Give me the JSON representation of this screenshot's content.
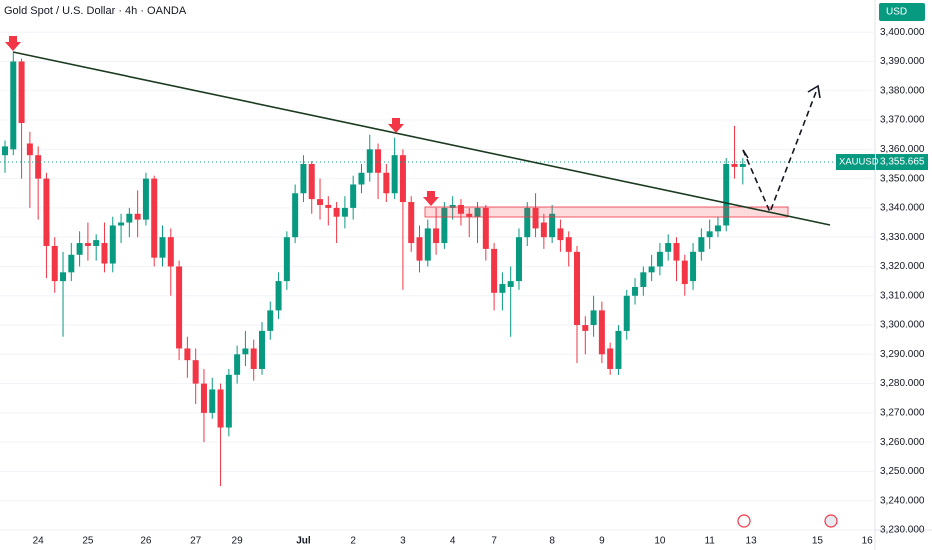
{
  "chart_data": {
    "type": "candlestick",
    "title": "Gold Spot / U.S. Dollar · 4h · OANDA",
    "currency": "USD",
    "up_color": "#089981",
    "down_color": "#f23645",
    "categories": [
      null,
      null,
      null,
      null,
      "24",
      null,
      null,
      null,
      null,
      null,
      "25",
      null,
      null,
      null,
      null,
      null,
      null,
      "26",
      null,
      null,
      null,
      null,
      null,
      "27",
      null,
      null,
      null,
      null,
      "29",
      null,
      null,
      null,
      null,
      null,
      null,
      null,
      "Jul",
      null,
      null,
      null,
      null,
      null,
      "2",
      null,
      null,
      null,
      null,
      null,
      "3",
      null,
      null,
      null,
      null,
      null,
      "4",
      null,
      null,
      null,
      null,
      "7",
      null,
      null,
      null,
      null,
      null,
      null,
      "8",
      null,
      null,
      null,
      null,
      null,
      "9",
      null,
      null,
      null,
      null,
      null,
      null,
      "10",
      null,
      null,
      null,
      null,
      null,
      "11",
      null,
      null,
      null,
      null,
      "13",
      null,
      null,
      null,
      null,
      null,
      null,
      null,
      "15",
      null,
      null,
      null,
      null,
      null,
      "16"
    ],
    "open": [
      3358,
      3360,
      3390,
      3362,
      3358,
      3350,
      3327,
      3315,
      3318,
      3324,
      3328,
      3327,
      3328,
      3321,
      3334,
      3335,
      3338,
      3336,
      3350,
      3323,
      3330,
      3320,
      3292,
      3288,
      3280,
      3270,
      3278,
      3265,
      3283,
      3290,
      3292,
      3285,
      3298,
      3305,
      3315,
      3330,
      3345,
      3355,
      3343,
      3341,
      3340,
      3337,
      3340,
      3348,
      3352,
      3360,
      3352,
      3345,
      3358,
      3342,
      3330,
      3322,
      3333,
      3328,
      3340,
      3341,
      3338,
      3337,
      3340,
      3326,
      3311,
      3313,
      3315,
      3330,
      3340,
      3335,
      3330,
      3333,
      3330,
      3325,
      3300,
      3300,
      3305,
      3292,
      3285,
      3298,
      3310,
      3313,
      3318,
      3320,
      3325,
      3328,
      3322,
      3315,
      3325,
      3330,
      3332,
      3334,
      3355,
      3354,
      null,
      null,
      null,
      null,
      null,
      null,
      null,
      null,
      null,
      null,
      null,
      null,
      null,
      null,
      null
    ],
    "close": [
      3361,
      3390,
      3369,
      3358,
      3350,
      3327,
      3315,
      3318,
      3324,
      3328,
      3327,
      3329,
      3321,
      3334,
      3335,
      3338,
      3336,
      3350,
      3323,
      3330,
      3320,
      3292,
      3288,
      3280,
      3270,
      3278,
      3265,
      3283,
      3290,
      3292,
      3285,
      3298,
      3305,
      3315,
      3330,
      3345,
      3355,
      3343,
      3341,
      3340,
      3337,
      3340,
      3348,
      3352,
      3360,
      3352,
      3345,
      3358,
      3342,
      3328,
      3322,
      3333,
      3328,
      3340,
      3341,
      3338,
      3337,
      3340,
      3326,
      3311,
      3314,
      3315,
      3330,
      3340,
      3333,
      3330,
      3338,
      3329,
      3325,
      3300,
      3298,
      3305,
      3290,
      3285,
      3298,
      3310,
      3313,
      3318,
      3320,
      3325,
      3328,
      3322,
      3314,
      3325,
      3330,
      3332,
      3334,
      3355,
      3354,
      3355,
      null,
      null,
      null,
      null,
      null,
      null,
      null,
      null,
      null,
      null,
      null,
      null,
      null,
      null,
      null
    ],
    "high": [
      3363,
      3393,
      3391,
      3366,
      3361,
      3352,
      3330,
      3325,
      3328,
      3332,
      3335,
      3331,
      3335,
      3337,
      3338,
      3340,
      3346,
      3352,
      3351,
      3334,
      3333,
      3322,
      3296,
      3292,
      3285,
      3282,
      3280,
      3285,
      3293,
      3298,
      3295,
      3301,
      3308,
      3318,
      3332,
      3348,
      3358,
      3356,
      3350,
      3344,
      3342,
      3344,
      3351,
      3355,
      3365,
      3362,
      3355,
      3364,
      3360,
      3344,
      3334,
      3336,
      3340,
      3342,
      3344,
      3343,
      3340,
      3342,
      3341,
      3328,
      3318,
      3320,
      3333,
      3342,
      3345,
      3338,
      3341,
      3336,
      3332,
      3327,
      3303,
      3310,
      3308,
      3294,
      3300,
      3312,
      3316,
      3320,
      3324,
      3328,
      3331,
      3330,
      3324,
      3328,
      3333,
      3336,
      3337,
      3357,
      3368,
      3357,
      null,
      null,
      null,
      null,
      null,
      null,
      null,
      null,
      null,
      null,
      null,
      null,
      null,
      null,
      null
    ],
    "low": [
      3352,
      3358,
      3350,
      3340,
      3336,
      3316,
      3311,
      3296,
      3315,
      3320,
      3322,
      3322,
      3318,
      3318,
      3328,
      3330,
      3330,
      3334,
      3320,
      3320,
      3310,
      3288,
      3282,
      3273,
      3260,
      3268,
      3245,
      3262,
      3280,
      3286,
      3281,
      3283,
      3295,
      3302,
      3312,
      3328,
      3342,
      3338,
      3336,
      3334,
      3328,
      3333,
      3336,
      3345,
      3349,
      3343,
      3342,
      3343,
      3312,
      3325,
      3318,
      3320,
      3324,
      3326,
      3336,
      3334,
      3330,
      3328,
      3322,
      3305,
      3305,
      3296,
      3312,
      3327,
      3330,
      3326,
      3328,
      3325,
      3320,
      3287,
      3290,
      3296,
      3287,
      3283,
      3283,
      3295,
      3307,
      3310,
      3315,
      3317,
      3322,
      3315,
      3310,
      3312,
      3322,
      3326,
      3330,
      3332,
      3350,
      3348,
      null,
      null,
      null,
      null,
      null,
      null,
      null,
      null,
      null,
      null,
      null,
      null,
      null,
      null,
      null
    ],
    "ylim": [
      3230,
      3411
    ],
    "yticks": [
      {
        "value": 3230,
        "label": "3,230.000"
      },
      {
        "value": 3240,
        "label": "3,240.000"
      },
      {
        "value": 3250,
        "label": "3,250.000"
      },
      {
        "value": 3260,
        "label": "3,260.000"
      },
      {
        "value": 3270,
        "label": "3,270.000"
      },
      {
        "value": 3280,
        "label": "3,280.000"
      },
      {
        "value": 3290,
        "label": "3,290.000"
      },
      {
        "value": 3300,
        "label": "3,300.000"
      },
      {
        "value": 3310,
        "label": "3,310.000"
      },
      {
        "value": 3320,
        "label": "3,320.000"
      },
      {
        "value": 3330,
        "label": "3,330.000"
      },
      {
        "value": 3340,
        "label": "3,340.000"
      },
      {
        "value": 3350,
        "label": "3,350.000"
      },
      {
        "value": 3360,
        "label": "3,360.000"
      },
      {
        "value": 3370,
        "label": "3,370.000"
      },
      {
        "value": 3380,
        "label": "3,380.000"
      },
      {
        "value": 3390,
        "label": "3,390.000"
      },
      {
        "value": 3400,
        "label": "3,400.000"
      }
    ],
    "price_tag": {
      "name": "XAUUSD",
      "value": 3355.665,
      "label": "3,355.665"
    }
  }
}
